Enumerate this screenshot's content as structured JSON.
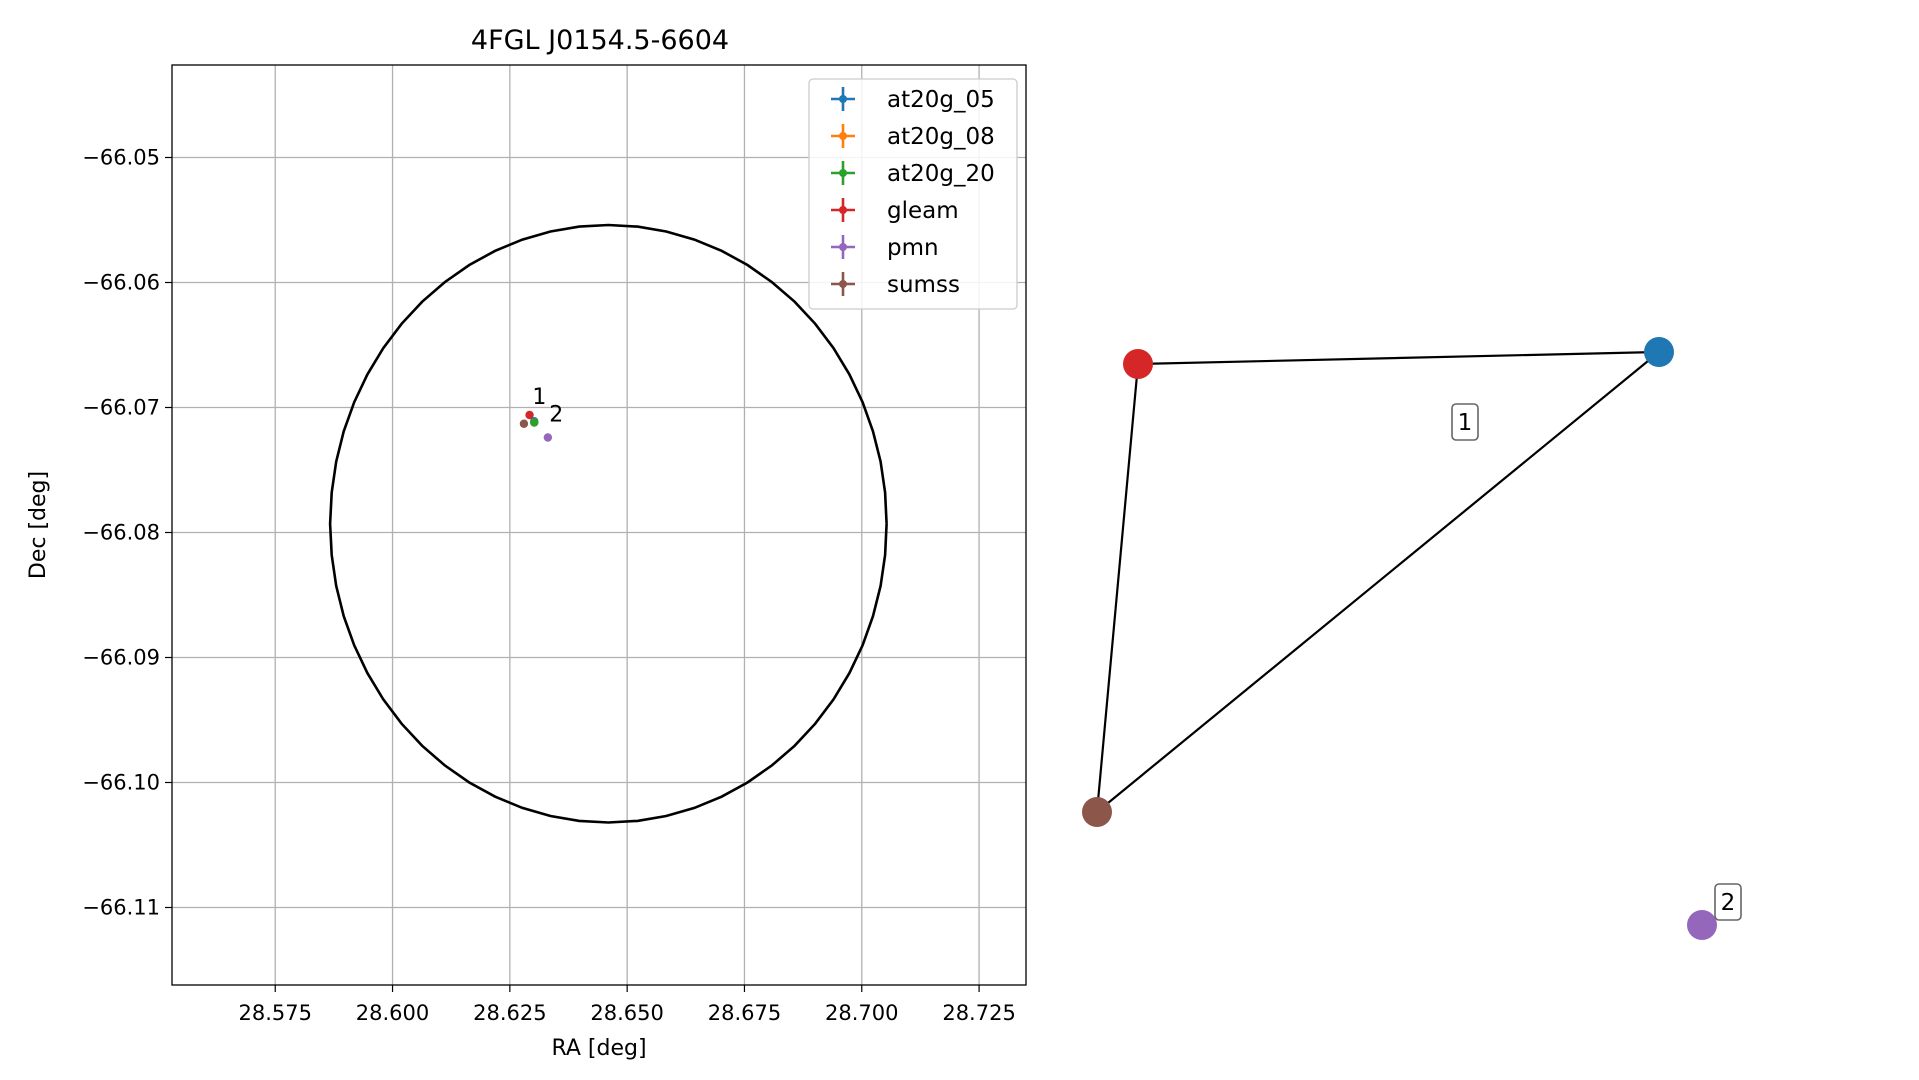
{
  "chart_data": [
    {
      "type": "scatter",
      "title": "4FGL J0154.5-6604",
      "xlabel": "RA [deg]",
      "ylabel": "Dec [deg]",
      "xlim": [
        28.553,
        28.735
      ],
      "ylim": [
        -66.1162,
        -66.0426
      ],
      "xticks": [
        28.575,
        28.6,
        28.625,
        28.65,
        28.675,
        28.7,
        28.725
      ],
      "xtick_labels": [
        "28.575",
        "28.600",
        "28.625",
        "28.650",
        "28.675",
        "28.700",
        "28.725"
      ],
      "yticks": [
        -66.05,
        -66.06,
        -66.07,
        -66.08,
        -66.09,
        -66.1,
        -66.11
      ],
      "ytick_labels": [
        "−66.05",
        "−66.06",
        "−66.07",
        "−66.08",
        "−66.09",
        "−66.10",
        "−66.11"
      ],
      "grid": true,
      "legend_position": "top-right",
      "series": [
        {
          "name": "at20g_05",
          "color": "#1f77b4",
          "x": [
            28.6302
          ],
          "y": [
            -66.0711
          ]
        },
        {
          "name": "at20g_08",
          "color": "#ff7f0e",
          "x": [
            28.6302
          ],
          "y": [
            -66.0712
          ]
        },
        {
          "name": "at20g_20",
          "color": "#2ca02c",
          "x": [
            28.6302
          ],
          "y": [
            -66.0712
          ]
        },
        {
          "name": "gleam",
          "color": "#d62728",
          "x": [
            28.6292
          ],
          "y": [
            -66.0706
          ]
        },
        {
          "name": "pmn",
          "color": "#9467bd",
          "x": [
            28.6331
          ],
          "y": [
            -66.0724
          ]
        },
        {
          "name": "sumss",
          "color": "#8c564b",
          "x": [
            28.628
          ],
          "y": [
            -66.0713
          ]
        }
      ],
      "ellipse": {
        "center_ra": 28.646,
        "center_dec": -66.0793,
        "half_width_ra": 0.0593,
        "half_height_dec": 0.0239,
        "color": "#000000"
      },
      "annotations": [
        {
          "text": "1",
          "x": 28.6298,
          "y": -66.0697
        },
        {
          "text": "2",
          "x": 28.6334,
          "y": -66.0711
        }
      ]
    },
    {
      "type": "network",
      "nodes": [
        {
          "name": "gleam",
          "color": "#d62728"
        },
        {
          "name": "at20g_05",
          "color": "#1f77b4"
        },
        {
          "name": "sumss",
          "color": "#8c564b"
        },
        {
          "name": "pmn",
          "color": "#9467bd"
        }
      ],
      "edges": [
        [
          "gleam",
          "at20g_05"
        ],
        [
          "gleam",
          "sumss"
        ],
        [
          "sumss",
          "at20g_05"
        ]
      ],
      "group_labels": [
        "1",
        "2"
      ]
    }
  ]
}
